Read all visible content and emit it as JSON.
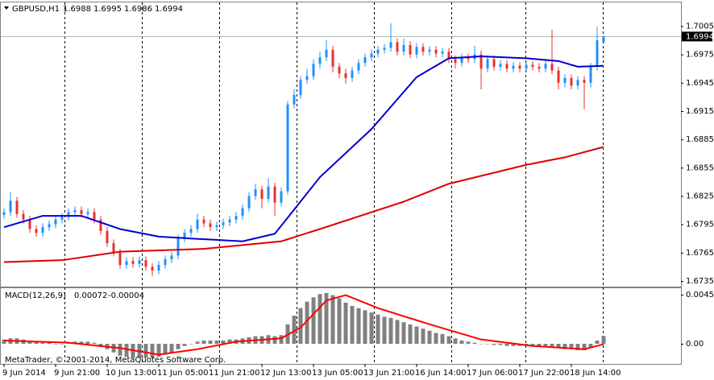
{
  "chart_data": [
    {
      "type": "candlestick",
      "title": "GBPUSD,H1",
      "bull_color": "#1e90ff",
      "bear_color": "#e8312f",
      "open": [
        1.6805,
        1.6808,
        1.682,
        1.6806,
        1.68,
        1.679,
        1.6786,
        1.6792,
        1.6795,
        1.68,
        1.6803,
        1.6808,
        1.681,
        1.6806,
        1.6808,
        1.68,
        1.6788,
        1.6775,
        1.6765,
        1.6752,
        1.6756,
        1.6753,
        1.6757,
        1.675,
        1.6746,
        1.6752,
        1.6758,
        1.6762,
        1.678,
        1.6786,
        1.679,
        1.68,
        1.6796,
        1.6792,
        1.6794,
        1.6797,
        1.68,
        1.6804,
        1.6812,
        1.6825,
        1.6832,
        1.6822,
        1.6835,
        1.6818,
        1.683,
        1.6922,
        1.6932,
        1.6948,
        1.6952,
        1.6965,
        1.6972,
        1.698,
        1.6962,
        1.6955,
        1.695,
        1.6958,
        1.6966,
        1.6972,
        1.6976,
        1.698,
        1.6982,
        1.6988,
        1.6978,
        1.6985,
        1.6975,
        1.6983,
        1.6978,
        1.698,
        1.6976,
        1.6978,
        1.697,
        1.6966,
        1.6972,
        1.697,
        1.6975,
        1.696,
        1.697,
        1.6962,
        1.6965,
        1.696,
        1.6963,
        1.696,
        1.6964,
        1.6962,
        1.696,
        1.6965,
        1.6958,
        1.6945,
        1.695,
        1.6942,
        1.6948,
        1.6945,
        1.6962,
        1.6988
      ],
      "high": [
        1.6812,
        1.6829,
        1.6824,
        1.681,
        1.6804,
        1.6794,
        1.6796,
        1.6799,
        1.6804,
        1.6807,
        1.6812,
        1.6814,
        1.6814,
        1.6812,
        1.6812,
        1.6804,
        1.6792,
        1.6779,
        1.6769,
        1.676,
        1.676,
        1.6761,
        1.6761,
        1.6754,
        1.6756,
        1.6762,
        1.6766,
        1.6784,
        1.679,
        1.6794,
        1.6806,
        1.6804,
        1.68,
        1.6798,
        1.6801,
        1.6804,
        1.6808,
        1.6816,
        1.6829,
        1.6838,
        1.6836,
        1.6844,
        1.6839,
        1.6834,
        1.6926,
        1.6938,
        1.6952,
        1.696,
        1.697,
        1.6978,
        1.699,
        1.6984,
        1.6966,
        1.696,
        1.6962,
        1.697,
        1.6976,
        1.698,
        1.6984,
        1.6986,
        1.7008,
        1.6992,
        1.6992,
        1.6989,
        1.6987,
        1.6987,
        1.6984,
        1.6984,
        1.6982,
        1.6982,
        1.6974,
        1.6976,
        1.6976,
        1.6984,
        1.6979,
        1.6974,
        1.6974,
        1.6969,
        1.6969,
        1.6967,
        1.6967,
        1.6968,
        1.6968,
        1.6966,
        1.6969,
        1.7001,
        1.6962,
        1.6954,
        1.6954,
        1.6952,
        1.6952,
        1.6966,
        1.7004,
        1.6995
      ],
      "low": [
        1.6801,
        1.6804,
        1.6802,
        1.6796,
        1.6786,
        1.6782,
        1.6782,
        1.6788,
        1.6791,
        1.6796,
        1.6799,
        1.6804,
        1.6802,
        1.6802,
        1.6796,
        1.6784,
        1.6771,
        1.6761,
        1.6748,
        1.6748,
        1.6749,
        1.6749,
        1.6746,
        1.674,
        1.6742,
        1.6748,
        1.6754,
        1.6758,
        1.6776,
        1.6782,
        1.6786,
        1.6792,
        1.6788,
        1.6788,
        1.679,
        1.6793,
        1.6796,
        1.68,
        1.6808,
        1.6821,
        1.6812,
        1.6818,
        1.6804,
        1.6814,
        1.6826,
        1.6918,
        1.6928,
        1.6944,
        1.6948,
        1.696,
        1.6968,
        1.6956,
        1.695,
        1.6944,
        1.6946,
        1.6954,
        1.6962,
        1.6968,
        1.6972,
        1.6976,
        1.6978,
        1.6974,
        1.6974,
        1.6971,
        1.6971,
        1.6974,
        1.6974,
        1.6972,
        1.6972,
        1.6966,
        1.696,
        1.6962,
        1.6966,
        1.6966,
        1.6938,
        1.6956,
        1.6958,
        1.6958,
        1.6956,
        1.6956,
        1.6956,
        1.6956,
        1.6958,
        1.6956,
        1.6956,
        1.6954,
        1.6938,
        1.694,
        1.6938,
        1.6938,
        1.6917,
        1.694,
        1.6958,
        1.6986
      ],
      "close": [
        1.6808,
        1.682,
        1.6806,
        1.68,
        1.679,
        1.6786,
        1.6792,
        1.6795,
        1.68,
        1.6803,
        1.6808,
        1.681,
        1.6806,
        1.6808,
        1.68,
        1.6788,
        1.6775,
        1.6765,
        1.6752,
        1.6756,
        1.6753,
        1.6757,
        1.675,
        1.6746,
        1.6752,
        1.6758,
        1.6762,
        1.678,
        1.6786,
        1.679,
        1.68,
        1.6796,
        1.6792,
        1.6794,
        1.6797,
        1.68,
        1.6804,
        1.6812,
        1.6825,
        1.6832,
        1.6822,
        1.6835,
        1.6818,
        1.683,
        1.6922,
        1.6932,
        1.6948,
        1.6952,
        1.6965,
        1.6972,
        1.698,
        1.6962,
        1.6955,
        1.695,
        1.6958,
        1.6966,
        1.6972,
        1.6976,
        1.698,
        1.6982,
        1.6988,
        1.6978,
        1.6985,
        1.6975,
        1.6983,
        1.6978,
        1.698,
        1.6976,
        1.6978,
        1.697,
        1.6966,
        1.6972,
        1.697,
        1.6975,
        1.696,
        1.697,
        1.6962,
        1.6965,
        1.696,
        1.6963,
        1.696,
        1.6964,
        1.6962,
        1.696,
        1.6965,
        1.6958,
        1.6945,
        1.695,
        1.6942,
        1.6948,
        1.6945,
        1.6962,
        1.699,
        1.6994
      ],
      "series": [
        {
          "color": "#0000cd",
          "x": [
            0,
            6,
            12,
            18,
            24,
            29,
            37,
            42,
            44,
            49,
            57,
            64,
            69,
            74,
            81,
            86,
            89,
            93
          ],
          "values": [
            1.6792,
            1.6804,
            1.6804,
            1.679,
            1.6782,
            1.678,
            1.6777,
            1.6785,
            1.6802,
            1.6845,
            1.6896,
            1.6951,
            1.6971,
            1.6973,
            1.6971,
            1.6968,
            1.6962,
            1.6963
          ]
        },
        {
          "color": "#dd0000",
          "x": [
            0,
            9,
            18,
            31,
            43,
            49,
            62,
            69,
            81,
            87,
            93
          ],
          "values": [
            1.6755,
            1.6757,
            1.6766,
            1.6769,
            1.6777,
            1.679,
            1.6819,
            1.6838,
            1.6858,
            1.6866,
            1.6877
          ]
        }
      ],
      "ylim": [
        1.6729,
        1.7031
      ],
      "yticks": [
        1.7005,
        1.6975,
        1.6945,
        1.6915,
        1.6885,
        1.6855,
        1.6825,
        1.6795,
        1.6765,
        1.6735
      ]
    },
    {
      "type": "macd",
      "title": "MACD(12,26,9)",
      "color": "#808080",
      "annotation": "MetaTrader, © 2001-2014, MetaQuotes Software Corp.",
      "categories": [
        "9 Jun 2014",
        null,
        null,
        null,
        null,
        null,
        null,
        null,
        "9 Jun 21:00",
        null,
        null,
        null,
        null,
        null,
        null,
        null,
        "10 Jun 13:00",
        null,
        null,
        null,
        null,
        null,
        null,
        null,
        "11 Jun 05:00",
        null,
        null,
        null,
        null,
        null,
        null,
        null,
        "11 Jun 21:00",
        null,
        null,
        null,
        null,
        null,
        null,
        null,
        "12 Jun 13:00",
        null,
        null,
        null,
        null,
        null,
        null,
        null,
        "13 Jun 05:00",
        null,
        null,
        null,
        null,
        null,
        null,
        null,
        "13 Jun 21:00",
        null,
        null,
        null,
        null,
        null,
        null,
        null,
        "16 Jun 14:00",
        null,
        null,
        null,
        null,
        null,
        null,
        null,
        "17 Jun 06:00",
        null,
        null,
        null,
        null,
        null,
        null,
        null,
        "17 Jun 22:00",
        null,
        null,
        null,
        null,
        null,
        null,
        null,
        "18 Jun 14:00",
        null,
        null,
        null,
        null,
        null
      ],
      "values": [
        0.0004,
        0.0005,
        0.0005,
        0.0004,
        0.0003,
        0.0002,
        0.0001,
        0.0001,
        0.0,
        0.0,
        0.0001,
        0.0002,
        0.0002,
        0.0002,
        0.0001,
        -0.0002,
        -0.0005,
        -0.0008,
        -0.0011,
        -0.0012,
        -0.0013,
        -0.0013,
        -0.0013,
        -0.0013,
        -0.0012,
        -0.001,
        -0.0008,
        -0.0005,
        -0.0002,
        0.0,
        0.0002,
        0.0003,
        0.0003,
        0.0003,
        0.0003,
        0.0004,
        0.0004,
        0.0005,
        0.0006,
        0.0007,
        0.0007,
        0.0008,
        0.0007,
        0.0008,
        0.0018,
        0.0026,
        0.0033,
        0.0039,
        0.0043,
        0.0046,
        0.0047,
        0.0045,
        0.0042,
        0.0038,
        0.0035,
        0.0033,
        0.0031,
        0.0029,
        0.0027,
        0.0025,
        0.0024,
        0.0022,
        0.002,
        0.0018,
        0.0016,
        0.0014,
        0.0012,
        0.001,
        0.0009,
        0.0007,
        0.0005,
        0.0003,
        0.0002,
        0.0001,
        0.0,
        0.0,
        -0.0001,
        -0.0001,
        -0.0002,
        -0.0002,
        -0.0002,
        -0.0002,
        -0.0002,
        -0.0002,
        -0.0002,
        -0.0003,
        -0.0004,
        -0.0005,
        -0.0005,
        -0.0006,
        -0.0006,
        -0.0003,
        0.0003,
        0.00072
      ],
      "series": [
        {
          "color": "#ff0000",
          "x": [
            0,
            10,
            18,
            24,
            30,
            36,
            43,
            46,
            50,
            53,
            58,
            66,
            74,
            82,
            90,
            93
          ],
          "values": [
            0.0003,
            0.0001,
            -0.0004,
            -0.001,
            -0.0005,
            0.0002,
            0.0005,
            0.0015,
            0.004,
            0.0045,
            0.0033,
            0.0018,
            0.0004,
            -0.0002,
            -0.0005,
            -4e-05
          ]
        }
      ],
      "ylim": [
        -0.00186,
        0.00514
      ],
      "yticks": [
        0.00454,
        {
          "value": 0,
          "label": "0.00"
        }
      ]
    }
  ]
}
